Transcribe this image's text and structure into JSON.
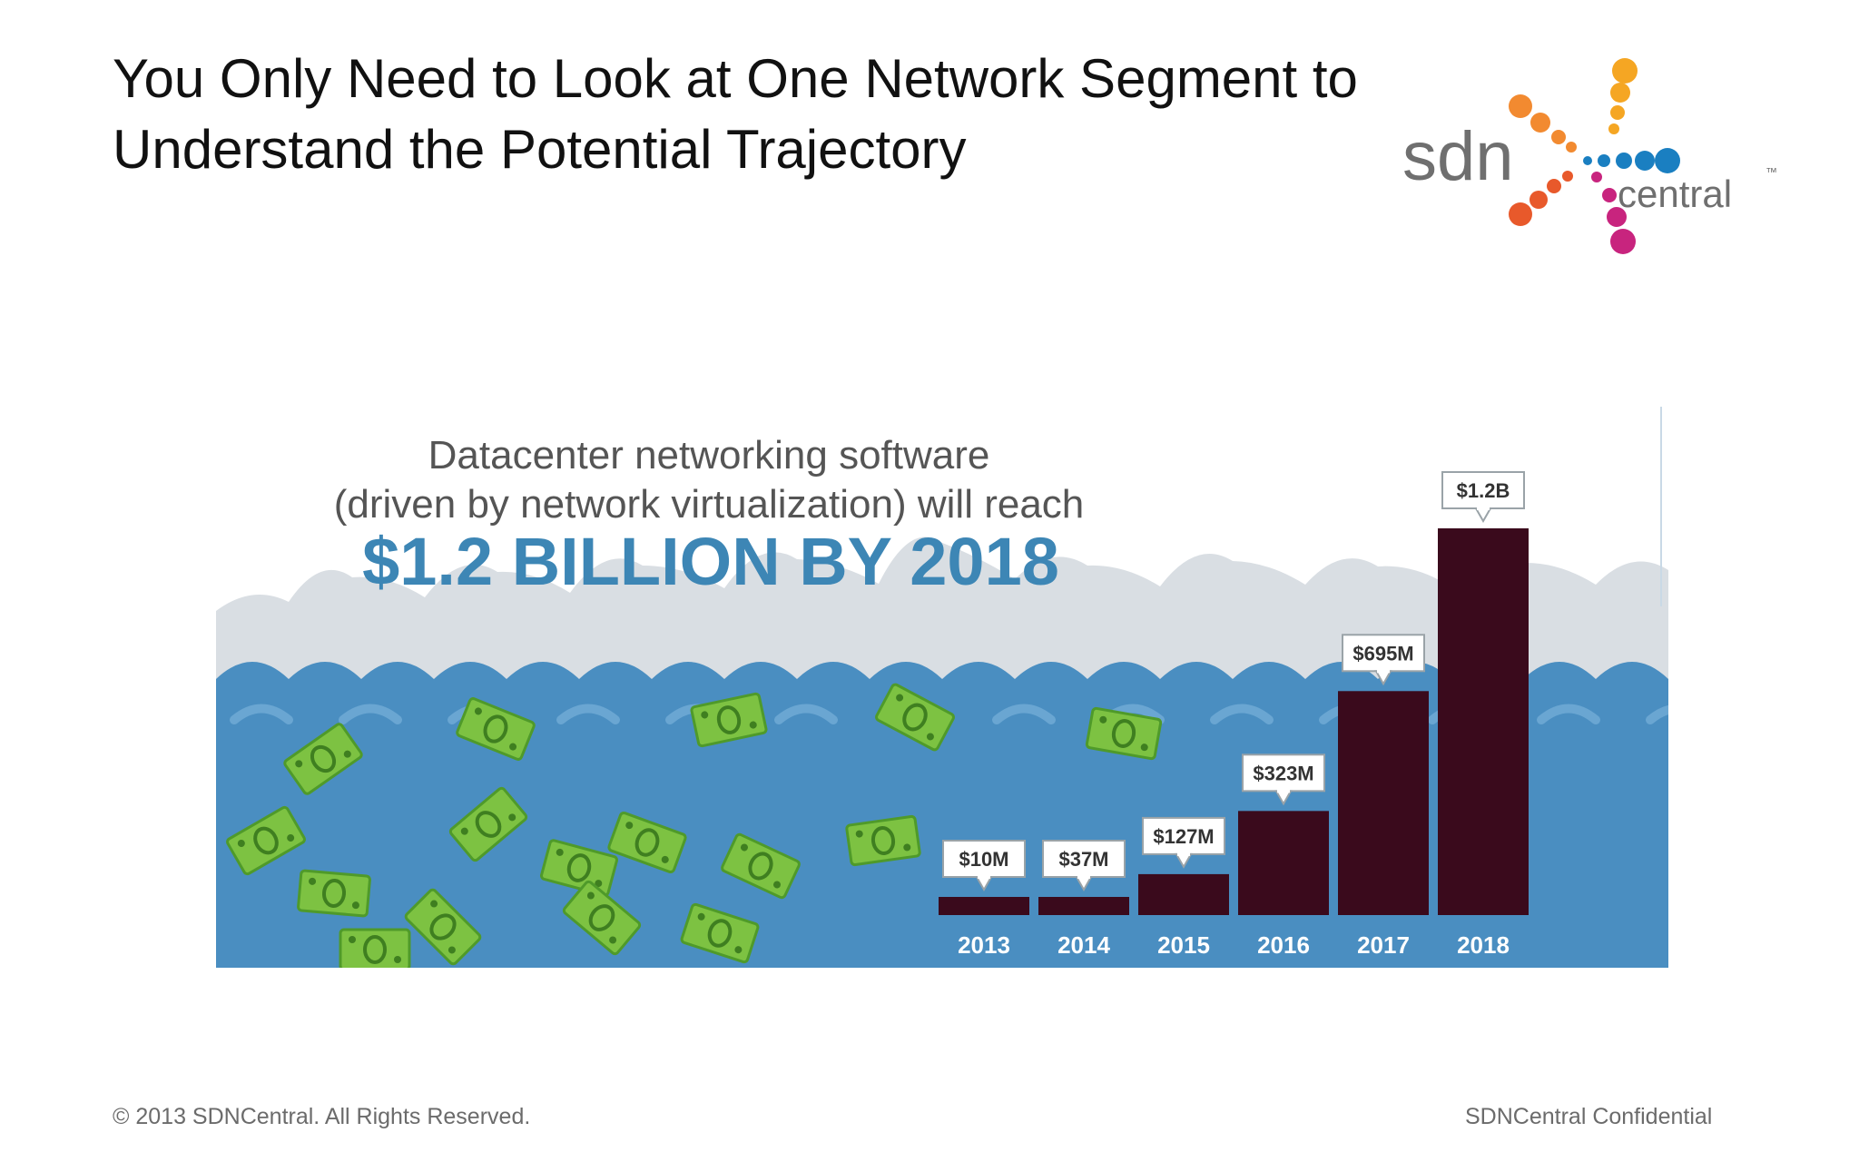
{
  "slide": {
    "title_line1": "You Only Need to Look at One Network Segment to",
    "title_line2": "Understand the Potential Trajectory",
    "footer_left": "© 2013 SDNCentral. All Rights Reserved.",
    "footer_right": "SDNCentral Confidential"
  },
  "logo": {
    "text_main": "sdn",
    "text_sub": "central",
    "trademark": "™",
    "colors": [
      "#f5a623",
      "#f28a30",
      "#e8592b",
      "#1a7fc1",
      "#c8247e"
    ]
  },
  "colors": {
    "bar": "#3a0a1c",
    "headline": "#3d86b5",
    "subtitle": "#555555",
    "water": "#4a8ec1",
    "cloud": "#d9dee3",
    "money": "#7dc242",
    "year_label": "#ffffff"
  },
  "chart_data": {
    "type": "bar",
    "subtitle_line1": "Datacenter networking software",
    "subtitle_line2": "(driven by network virtualization) will reach",
    "title": "$1.2 BILLION BY 2018",
    "categories": [
      "2013",
      "2014",
      "2015",
      "2016",
      "2017",
      "2018"
    ],
    "values": [
      10,
      37,
      127,
      323,
      695,
      1200
    ],
    "unit": "USD millions",
    "data_labels": [
      "$10M",
      "$37M",
      "$127M",
      "$323M",
      "$695M",
      "$1.2B"
    ],
    "xlabel": "",
    "ylabel": "",
    "ylim": [
      0,
      1200
    ],
    "grid": false,
    "legend": "none"
  }
}
